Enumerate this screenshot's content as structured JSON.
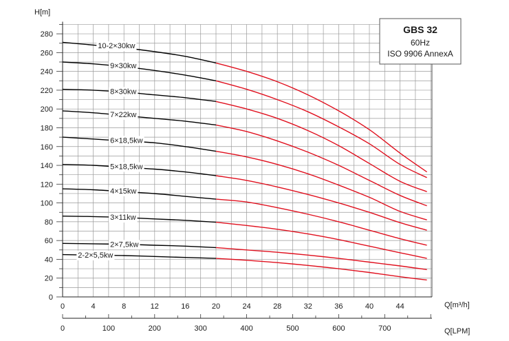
{
  "chart_data": {
    "type": "line",
    "title": "GBS 32",
    "subtitle": [
      "60Hz",
      "ISO 9906 AnnexA"
    ],
    "ylabel": "H[m]",
    "xlabel": "Q[m³/h]",
    "xlabel_secondary": "Q[LPM]",
    "ylim": [
      0,
      290
    ],
    "xlim": [
      0,
      48
    ],
    "yticks": [
      0,
      20,
      40,
      60,
      80,
      100,
      120,
      140,
      160,
      180,
      200,
      220,
      240,
      260,
      280
    ],
    "xticks": [
      0,
      4,
      8,
      12,
      16,
      20,
      24,
      28,
      32,
      36,
      40,
      44
    ],
    "xticks_secondary": [
      0,
      100,
      200,
      300,
      400,
      500,
      600,
      700
    ],
    "grid": true,
    "recommended_range_start": 20,
    "colors": {
      "low_flow": "#000000",
      "operating_range": "#e0101e"
    },
    "series": [
      {
        "name": "10-2×30kw",
        "x": [
          0,
          4,
          8,
          12,
          16,
          20,
          24,
          28,
          32,
          36,
          40,
          44,
          47.5
        ],
        "y": [
          271,
          268,
          265,
          261,
          256,
          249,
          240,
          229,
          215,
          198,
          178,
          153,
          133
        ]
      },
      {
        "name": "9×30kw",
        "x": [
          0,
          4,
          8,
          12,
          16,
          20,
          24,
          28,
          32,
          36,
          40,
          44,
          47.5
        ],
        "y": [
          250,
          248,
          245,
          241,
          236,
          230,
          221,
          210,
          197,
          181,
          163,
          141,
          127
        ]
      },
      {
        "name": "8×30kw",
        "x": [
          0,
          4,
          8,
          12,
          16,
          20,
          24,
          28,
          32,
          36,
          40,
          44,
          47.5
        ],
        "y": [
          221,
          220,
          218,
          215,
          212,
          208,
          200,
          190,
          177,
          161,
          142,
          123,
          112
        ]
      },
      {
        "name": "7×22kw",
        "x": [
          0,
          4,
          8,
          12,
          16,
          20,
          24,
          28,
          32,
          36,
          40,
          44,
          47.5
        ],
        "y": [
          198,
          196,
          193,
          190,
          187,
          183,
          176,
          166,
          154,
          140,
          124,
          108,
          97
        ]
      },
      {
        "name": "6×18,5kw",
        "x": [
          0,
          4,
          8,
          12,
          16,
          20,
          24,
          28,
          32,
          36,
          40,
          44,
          47.5
        ],
        "y": [
          170,
          168,
          166,
          164,
          160,
          155,
          149,
          141,
          131,
          119,
          106,
          91,
          82
        ]
      },
      {
        "name": "5×18,5kw",
        "x": [
          0,
          4,
          8,
          12,
          16,
          20,
          24,
          28,
          32,
          36,
          40,
          44,
          47.5
        ],
        "y": [
          141,
          140,
          138,
          136,
          133,
          129,
          124,
          117,
          109,
          100,
          90,
          79,
          71
        ]
      },
      {
        "name": "4×15kw",
        "x": [
          0,
          4,
          8,
          12,
          16,
          20,
          24,
          28,
          32,
          36,
          40,
          44,
          47.5
        ],
        "y": [
          115,
          114,
          112,
          110,
          107,
          104,
          101,
          95,
          88,
          80,
          71,
          62,
          55
        ]
      },
      {
        "name": "3×11kw",
        "x": [
          0,
          4,
          8,
          12,
          16,
          20,
          24,
          28,
          32,
          36,
          40,
          44,
          47.5
        ],
        "y": [
          86,
          85.5,
          84.5,
          83,
          81.5,
          79.5,
          76,
          72,
          67,
          61,
          54,
          47,
          41
        ]
      },
      {
        "name": "2×7,5kw",
        "x": [
          0,
          4,
          8,
          12,
          16,
          20,
          24,
          28,
          32,
          36,
          40,
          44,
          47.5
        ],
        "y": [
          57,
          56.5,
          56,
          55,
          54,
          52.5,
          50,
          47.5,
          44.5,
          41,
          37,
          33,
          29
        ]
      },
      {
        "name": "2-2×5,5kw",
        "x": [
          0,
          4,
          8,
          12,
          16,
          20,
          24,
          28,
          32,
          36,
          40,
          44,
          47.5
        ],
        "y": [
          45,
          44.5,
          44,
          43,
          42,
          41,
          39,
          36.5,
          33.5,
          30,
          26,
          21.5,
          18
        ]
      }
    ]
  }
}
